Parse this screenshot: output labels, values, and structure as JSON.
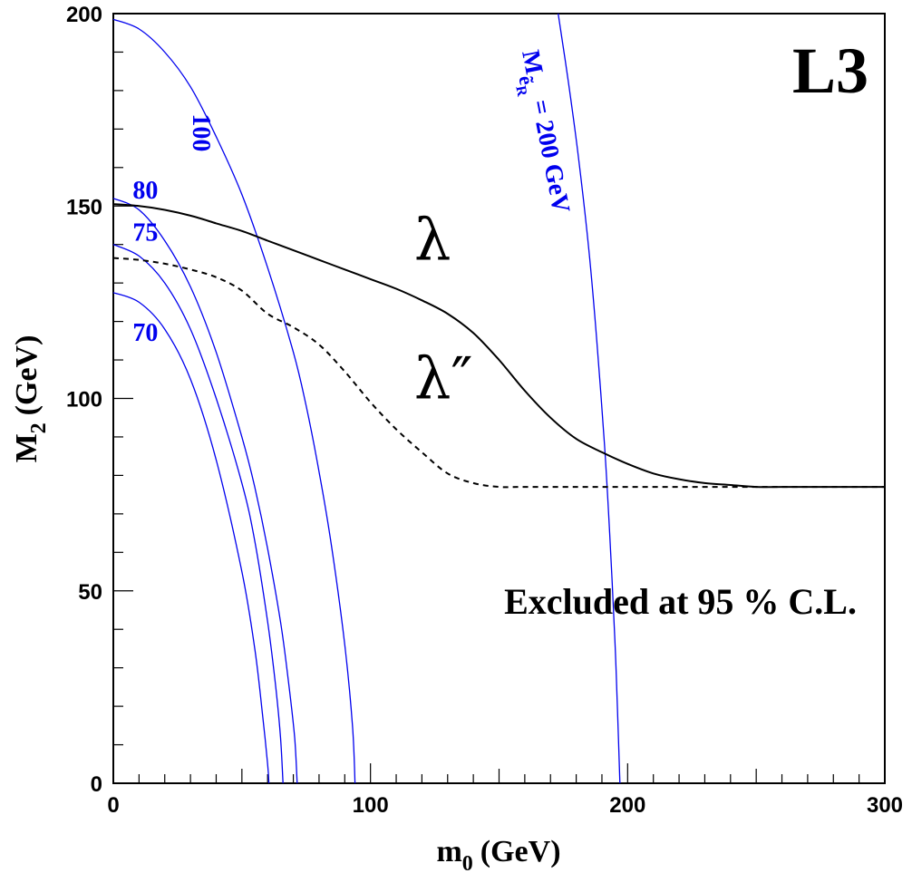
{
  "chart_data": {
    "type": "line",
    "xlabel": "m",
    "xlabel_sub": "0",
    "xlabel_unit": "(GeV)",
    "ylabel": "M",
    "ylabel_sub": "2",
    "ylabel_unit": "(GeV)",
    "xlim": [
      0,
      300
    ],
    "ylim": [
      0,
      200
    ],
    "x_ticks": [
      0,
      100,
      200,
      300
    ],
    "y_ticks": [
      0,
      50,
      100,
      150,
      200
    ],
    "experiment_label": "L3",
    "annotation": "Excluded at 95 % C.L.",
    "colors": {
      "limit": "#000000",
      "contour": "#0000ee"
    },
    "series": [
      {
        "name": "λ",
        "style": "solid",
        "label_pos": [
          117,
          136
        ],
        "x": [
          0,
          10,
          20,
          30,
          40,
          50,
          60,
          70,
          80,
          90,
          100,
          110,
          120,
          130,
          140,
          150,
          160,
          170,
          180,
          190,
          200,
          210,
          220,
          230,
          240,
          250,
          260,
          280,
          300
        ],
        "y": [
          150.5,
          150,
          149,
          147.5,
          145.5,
          143.5,
          141,
          138.5,
          136,
          133.5,
          131,
          128.5,
          125.5,
          122,
          117,
          110,
          102,
          95,
          89.5,
          86,
          83,
          80.5,
          79,
          78,
          77.5,
          77,
          77,
          77,
          77
        ]
      },
      {
        "name": "λ″",
        "style": "dashed",
        "label_pos": [
          117,
          100
        ],
        "x": [
          0,
          10,
          20,
          30,
          40,
          50,
          60,
          70,
          80,
          90,
          100,
          110,
          120,
          130,
          140,
          150,
          160,
          180,
          200,
          220,
          240,
          260,
          280,
          300
        ],
        "y": [
          136.5,
          136,
          135,
          133.5,
          131.5,
          128,
          122,
          118.5,
          114,
          107,
          99,
          92,
          86,
          80.5,
          78,
          77,
          77,
          77,
          77,
          77,
          77,
          77,
          77,
          77
        ]
      }
    ],
    "contours": [
      {
        "label": "70",
        "label_pos": [
          4,
          115
        ],
        "x": [
          0,
          10,
          20,
          30,
          40,
          50,
          55,
          58,
          60,
          60.5
        ],
        "y": [
          127.5,
          125,
          118,
          105,
          84,
          55,
          35,
          18,
          5,
          0
        ]
      },
      {
        "label": "75",
        "label_pos": [
          4,
          141
        ],
        "x": [
          0,
          10,
          20,
          30,
          40,
          50,
          55,
          60,
          63,
          65,
          66
        ],
        "y": [
          140,
          137,
          130,
          118,
          100,
          78,
          63,
          42,
          26,
          12,
          0
        ]
      },
      {
        "label": "80",
        "label_pos": [
          4,
          152
        ],
        "x": [
          0,
          10,
          20,
          30,
          40,
          50,
          55,
          60,
          65,
          68,
          70.5,
          71.5
        ],
        "y": [
          152,
          149,
          141,
          129,
          112,
          90,
          77,
          61,
          42,
          27,
          12,
          0
        ]
      },
      {
        "label": "100",
        "label_pos": [
          31,
          174
        ],
        "x": [
          0,
          10,
          20,
          30,
          40,
          50,
          60,
          70,
          75,
          80,
          85,
          90,
          93,
          94
        ],
        "y": [
          198.5,
          196,
          190,
          181,
          168,
          153,
          134,
          112,
          98,
          81,
          61,
          36,
          15,
          0
        ]
      },
      {
        "label": "M",
        "sub": "ẽ",
        "subsub": "R",
        "suffix": "= 200 GeV",
        "label_pos": [
          159,
          190
        ],
        "x": [
          173,
          177,
          181,
          185,
          188,
          191,
          193,
          195,
          196,
          197
        ],
        "y": [
          200,
          182,
          162,
          138,
          115,
          88,
          65,
          38,
          20,
          0
        ]
      }
    ]
  }
}
